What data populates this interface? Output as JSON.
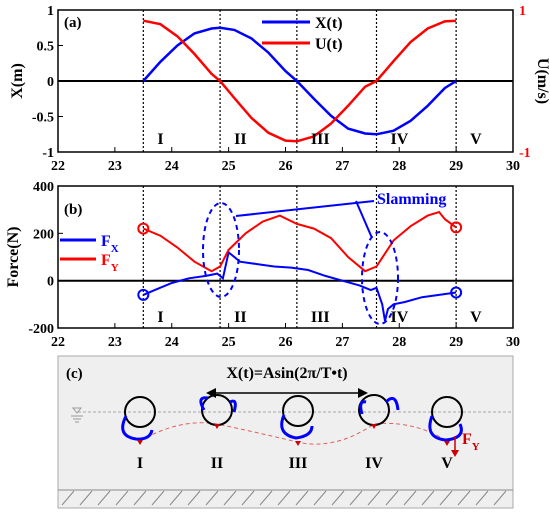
{
  "chart_data": [
    {
      "panel": "(a)",
      "type": "line",
      "xlim": [
        22,
        30
      ],
      "xticks": [
        22,
        23,
        24,
        25,
        26,
        27,
        28,
        29,
        30
      ],
      "ylabel": "X(m)",
      "ylim": [
        -1,
        1
      ],
      "yticks": [
        "-1",
        "-0.5",
        "0",
        "0.5",
        "1"
      ],
      "y2label": "U(m/s)",
      "y2lim": [
        -1,
        1
      ],
      "y2ticks": [
        "-1",
        "1"
      ],
      "legend_placement": "top-center",
      "series": [
        {
          "name": "X(t)",
          "axis": "left",
          "color": "#0000ff",
          "x": [
            23.5,
            23.8,
            24.1,
            24.4,
            24.7,
            24.85,
            25.1,
            25.4,
            25.7,
            26.0,
            26.2,
            26.5,
            26.8,
            27.1,
            27.4,
            27.6,
            27.9,
            28.2,
            28.5,
            28.8,
            29.0
          ],
          "y": [
            0.0,
            0.27,
            0.5,
            0.67,
            0.74,
            0.75,
            0.72,
            0.6,
            0.4,
            0.14,
            0.0,
            -0.25,
            -0.49,
            -0.67,
            -0.74,
            -0.75,
            -0.7,
            -0.56,
            -0.35,
            -0.1,
            0.0
          ]
        },
        {
          "name": "U(t)",
          "axis": "right",
          "color": "#ff0000",
          "x": [
            23.5,
            23.8,
            24.1,
            24.4,
            24.7,
            24.85,
            25.1,
            25.4,
            25.7,
            26.0,
            26.2,
            26.5,
            26.8,
            27.1,
            27.4,
            27.6,
            27.9,
            28.2,
            28.5,
            28.8,
            29.0
          ],
          "y": [
            0.85,
            0.8,
            0.63,
            0.38,
            0.1,
            0.0,
            -0.24,
            -0.52,
            -0.73,
            -0.84,
            -0.85,
            -0.78,
            -0.6,
            -0.35,
            -0.08,
            0.0,
            0.28,
            0.55,
            0.74,
            0.84,
            0.85
          ]
        }
      ],
      "phase_lines_x": [
        23.5,
        24.85,
        26.2,
        27.6,
        29.0
      ],
      "phase_labels": [
        "I",
        "II",
        "III",
        "IV",
        "V"
      ]
    },
    {
      "panel": "(b)",
      "type": "line",
      "xlim": [
        22,
        30
      ],
      "xticks": [
        22,
        23,
        24,
        25,
        26,
        27,
        28,
        29,
        30
      ],
      "ylabel": "Force(N)",
      "ylim": [
        -200,
        400
      ],
      "yticks": [
        -200,
        0,
        200,
        400
      ],
      "legend_placement": "left",
      "annotation": "Slamming",
      "series": [
        {
          "name": "FX",
          "color": "#0000ff",
          "x": [
            23.5,
            23.7,
            24.0,
            24.3,
            24.6,
            24.8,
            24.9,
            25.0,
            25.2,
            25.5,
            25.8,
            26.1,
            26.4,
            26.7,
            27.0,
            27.3,
            27.5,
            27.6,
            27.7,
            27.75,
            27.8,
            27.9,
            28.1,
            28.4,
            28.7,
            29.0
          ],
          "y": [
            -60,
            -40,
            -10,
            10,
            20,
            30,
            10,
            120,
            80,
            70,
            60,
            55,
            45,
            20,
            0,
            -20,
            -40,
            -30,
            -100,
            -170,
            -120,
            -100,
            -90,
            -70,
            -60,
            -50
          ]
        },
        {
          "name": "FY",
          "color": "#ff0000",
          "x": [
            23.5,
            23.8,
            24.1,
            24.4,
            24.7,
            24.85,
            25.0,
            25.3,
            25.6,
            25.9,
            26.2,
            26.5,
            26.8,
            27.1,
            27.4,
            27.6,
            27.9,
            28.2,
            28.5,
            28.7,
            28.8,
            29.0
          ],
          "y": [
            220,
            190,
            140,
            80,
            40,
            60,
            130,
            200,
            250,
            275,
            240,
            220,
            180,
            100,
            40,
            60,
            170,
            230,
            275,
            290,
            260,
            225
          ]
        }
      ],
      "phase_lines_x": [
        23.5,
        24.85,
        26.2,
        27.6,
        29.0
      ],
      "phase_labels": [
        "I",
        "II",
        "III",
        "IV",
        "V"
      ]
    }
  ],
  "panel_c": {
    "label": "(c)",
    "equation": "X(t)=Asin(2π/T•t)",
    "stage_labels": [
      "I",
      "II",
      "III",
      "IV",
      "V"
    ],
    "force_label": "F",
    "force_sub": "Y"
  },
  "colors": {
    "blue": "#0000ff",
    "red": "#ff0000",
    "dashed": "#555555"
  }
}
